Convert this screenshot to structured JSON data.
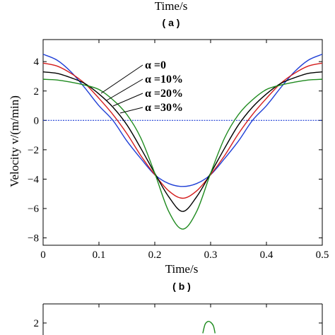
{
  "top_partial": {
    "xlabel": "Time/s",
    "panel_label": "( a )"
  },
  "chart_data": [
    {
      "type": "line",
      "panel_label": "( b )",
      "xlabel": "Time/s",
      "ylabel": "Velocity v/(m/min)",
      "xlim": [
        0,
        0.5
      ],
      "ylim": [
        -8.5,
        5.5
      ],
      "xticks": [
        0,
        0.1,
        0.2,
        0.3,
        0.4,
        0.5
      ],
      "xtick_labels": [
        "0",
        "0.1",
        "0.2",
        "0.3",
        "0.4",
        "0.5"
      ],
      "yticks": [
        -8,
        -6,
        -4,
        -2,
        0,
        2,
        4
      ],
      "ytick_labels": [
        "−8",
        "−6",
        "−4",
        "−2",
        "0",
        "2",
        "4"
      ],
      "grid": false,
      "legend_placement": "top-center",
      "series": [
        {
          "name": "α =0",
          "color": "#1f3fd6",
          "x": [
            0,
            0.025,
            0.05,
            0.075,
            0.1,
            0.125,
            0.15,
            0.175,
            0.2,
            0.225,
            0.25,
            0.275,
            0.3,
            0.325,
            0.35,
            0.375,
            0.4,
            0.425,
            0.45,
            0.475,
            0.5
          ],
          "y": [
            4.5,
            4.1,
            3.3,
            2.2,
            1.0,
            0.0,
            -1.4,
            -2.6,
            -3.7,
            -4.3,
            -4.5,
            -4.3,
            -3.7,
            -2.6,
            -1.4,
            0.0,
            1.0,
            2.2,
            3.3,
            4.1,
            4.5
          ]
        },
        {
          "name": "α =10%",
          "color": "#d41c1c",
          "x": [
            0,
            0.025,
            0.05,
            0.075,
            0.1,
            0.125,
            0.15,
            0.175,
            0.2,
            0.225,
            0.25,
            0.275,
            0.3,
            0.325,
            0.35,
            0.375,
            0.4,
            0.425,
            0.45,
            0.475,
            0.5
          ],
          "y": [
            3.9,
            3.7,
            3.2,
            2.5,
            1.5,
            0.4,
            -0.9,
            -2.4,
            -3.7,
            -4.8,
            -5.3,
            -4.8,
            -3.7,
            -2.4,
            -0.9,
            0.4,
            1.5,
            2.5,
            3.2,
            3.7,
            3.9
          ]
        },
        {
          "name": "α =20%",
          "color": "#000000",
          "x": [
            0,
            0.025,
            0.05,
            0.075,
            0.1,
            0.125,
            0.15,
            0.175,
            0.2,
            0.225,
            0.25,
            0.275,
            0.3,
            0.325,
            0.35,
            0.375,
            0.4,
            0.425,
            0.45,
            0.475,
            0.5
          ],
          "y": [
            3.3,
            3.2,
            2.9,
            2.5,
            1.8,
            0.9,
            -0.3,
            -1.9,
            -3.6,
            -5.2,
            -6.2,
            -5.2,
            -3.6,
            -1.9,
            -0.3,
            0.9,
            1.8,
            2.5,
            2.9,
            3.2,
            3.3
          ]
        },
        {
          "name": "α =30%",
          "color": "#1e8a1e",
          "x": [
            0,
            0.025,
            0.05,
            0.075,
            0.1,
            0.125,
            0.15,
            0.175,
            0.2,
            0.225,
            0.25,
            0.275,
            0.3,
            0.325,
            0.35,
            0.375,
            0.4,
            0.425,
            0.45,
            0.475,
            0.5
          ],
          "y": [
            2.8,
            2.75,
            2.6,
            2.4,
            2.1,
            1.4,
            0.4,
            -1.2,
            -3.6,
            -6.2,
            -7.4,
            -6.2,
            -3.6,
            -1.2,
            0.4,
            1.4,
            2.1,
            2.4,
            2.6,
            2.75,
            2.8
          ]
        }
      ],
      "zero_line": {
        "y": 0,
        "color": "#1f3fd6"
      }
    },
    {
      "type": "line",
      "partial": true,
      "yticks": [
        2
      ],
      "ytick_labels": [
        "2"
      ],
      "series": [
        {
          "name": "",
          "color": "#1e8a1e",
          "x": [
            0.286,
            0.29,
            0.295,
            0.3,
            0.305,
            0.308
          ],
          "y": [
            1.3,
            1.9,
            2.1,
            2.05,
            1.8,
            1.3
          ]
        }
      ]
    }
  ]
}
